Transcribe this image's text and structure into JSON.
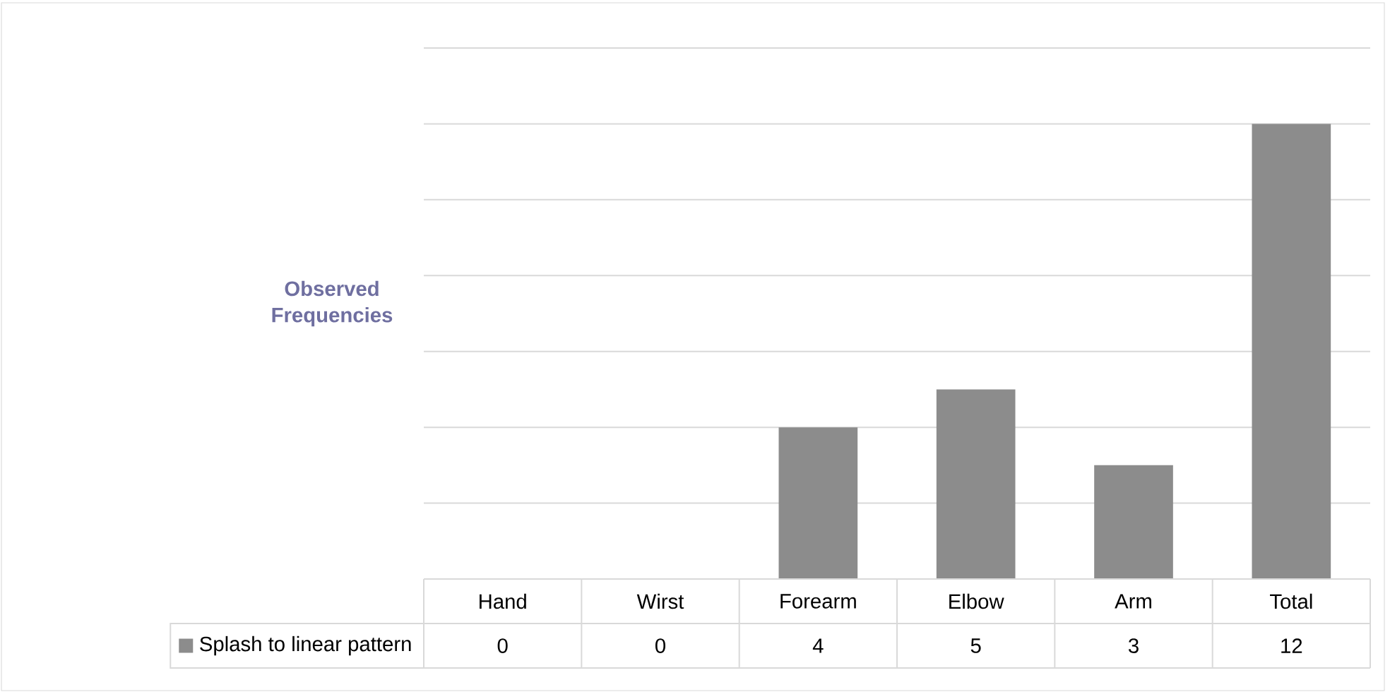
{
  "chart_data": {
    "type": "bar",
    "ylabel": "Observed Frequencies",
    "categories": [
      "Hand",
      "Wirst",
      "Forearm",
      "Elbow",
      "Arm",
      "Total"
    ],
    "series": [
      {
        "name": "Splash to linear pattern",
        "color": "#8c8c8c",
        "values": [
          0,
          0,
          4,
          5,
          3,
          12
        ]
      }
    ],
    "ylim": [
      0,
      14
    ],
    "yticks": [
      {
        "value": 0,
        "label": null
      },
      {
        "value": 2,
        "label": null
      },
      {
        "value": 4,
        "label": null
      },
      {
        "value": 6,
        "label": null
      },
      {
        "value": 8,
        "label": null
      },
      {
        "value": 10,
        "label": null
      },
      {
        "value": 12,
        "label": null
      },
      {
        "value": 14,
        "label": null
      }
    ],
    "tick_labels": "x",
    "grid": "y",
    "legend": "bottom",
    "data_labels": true
  }
}
